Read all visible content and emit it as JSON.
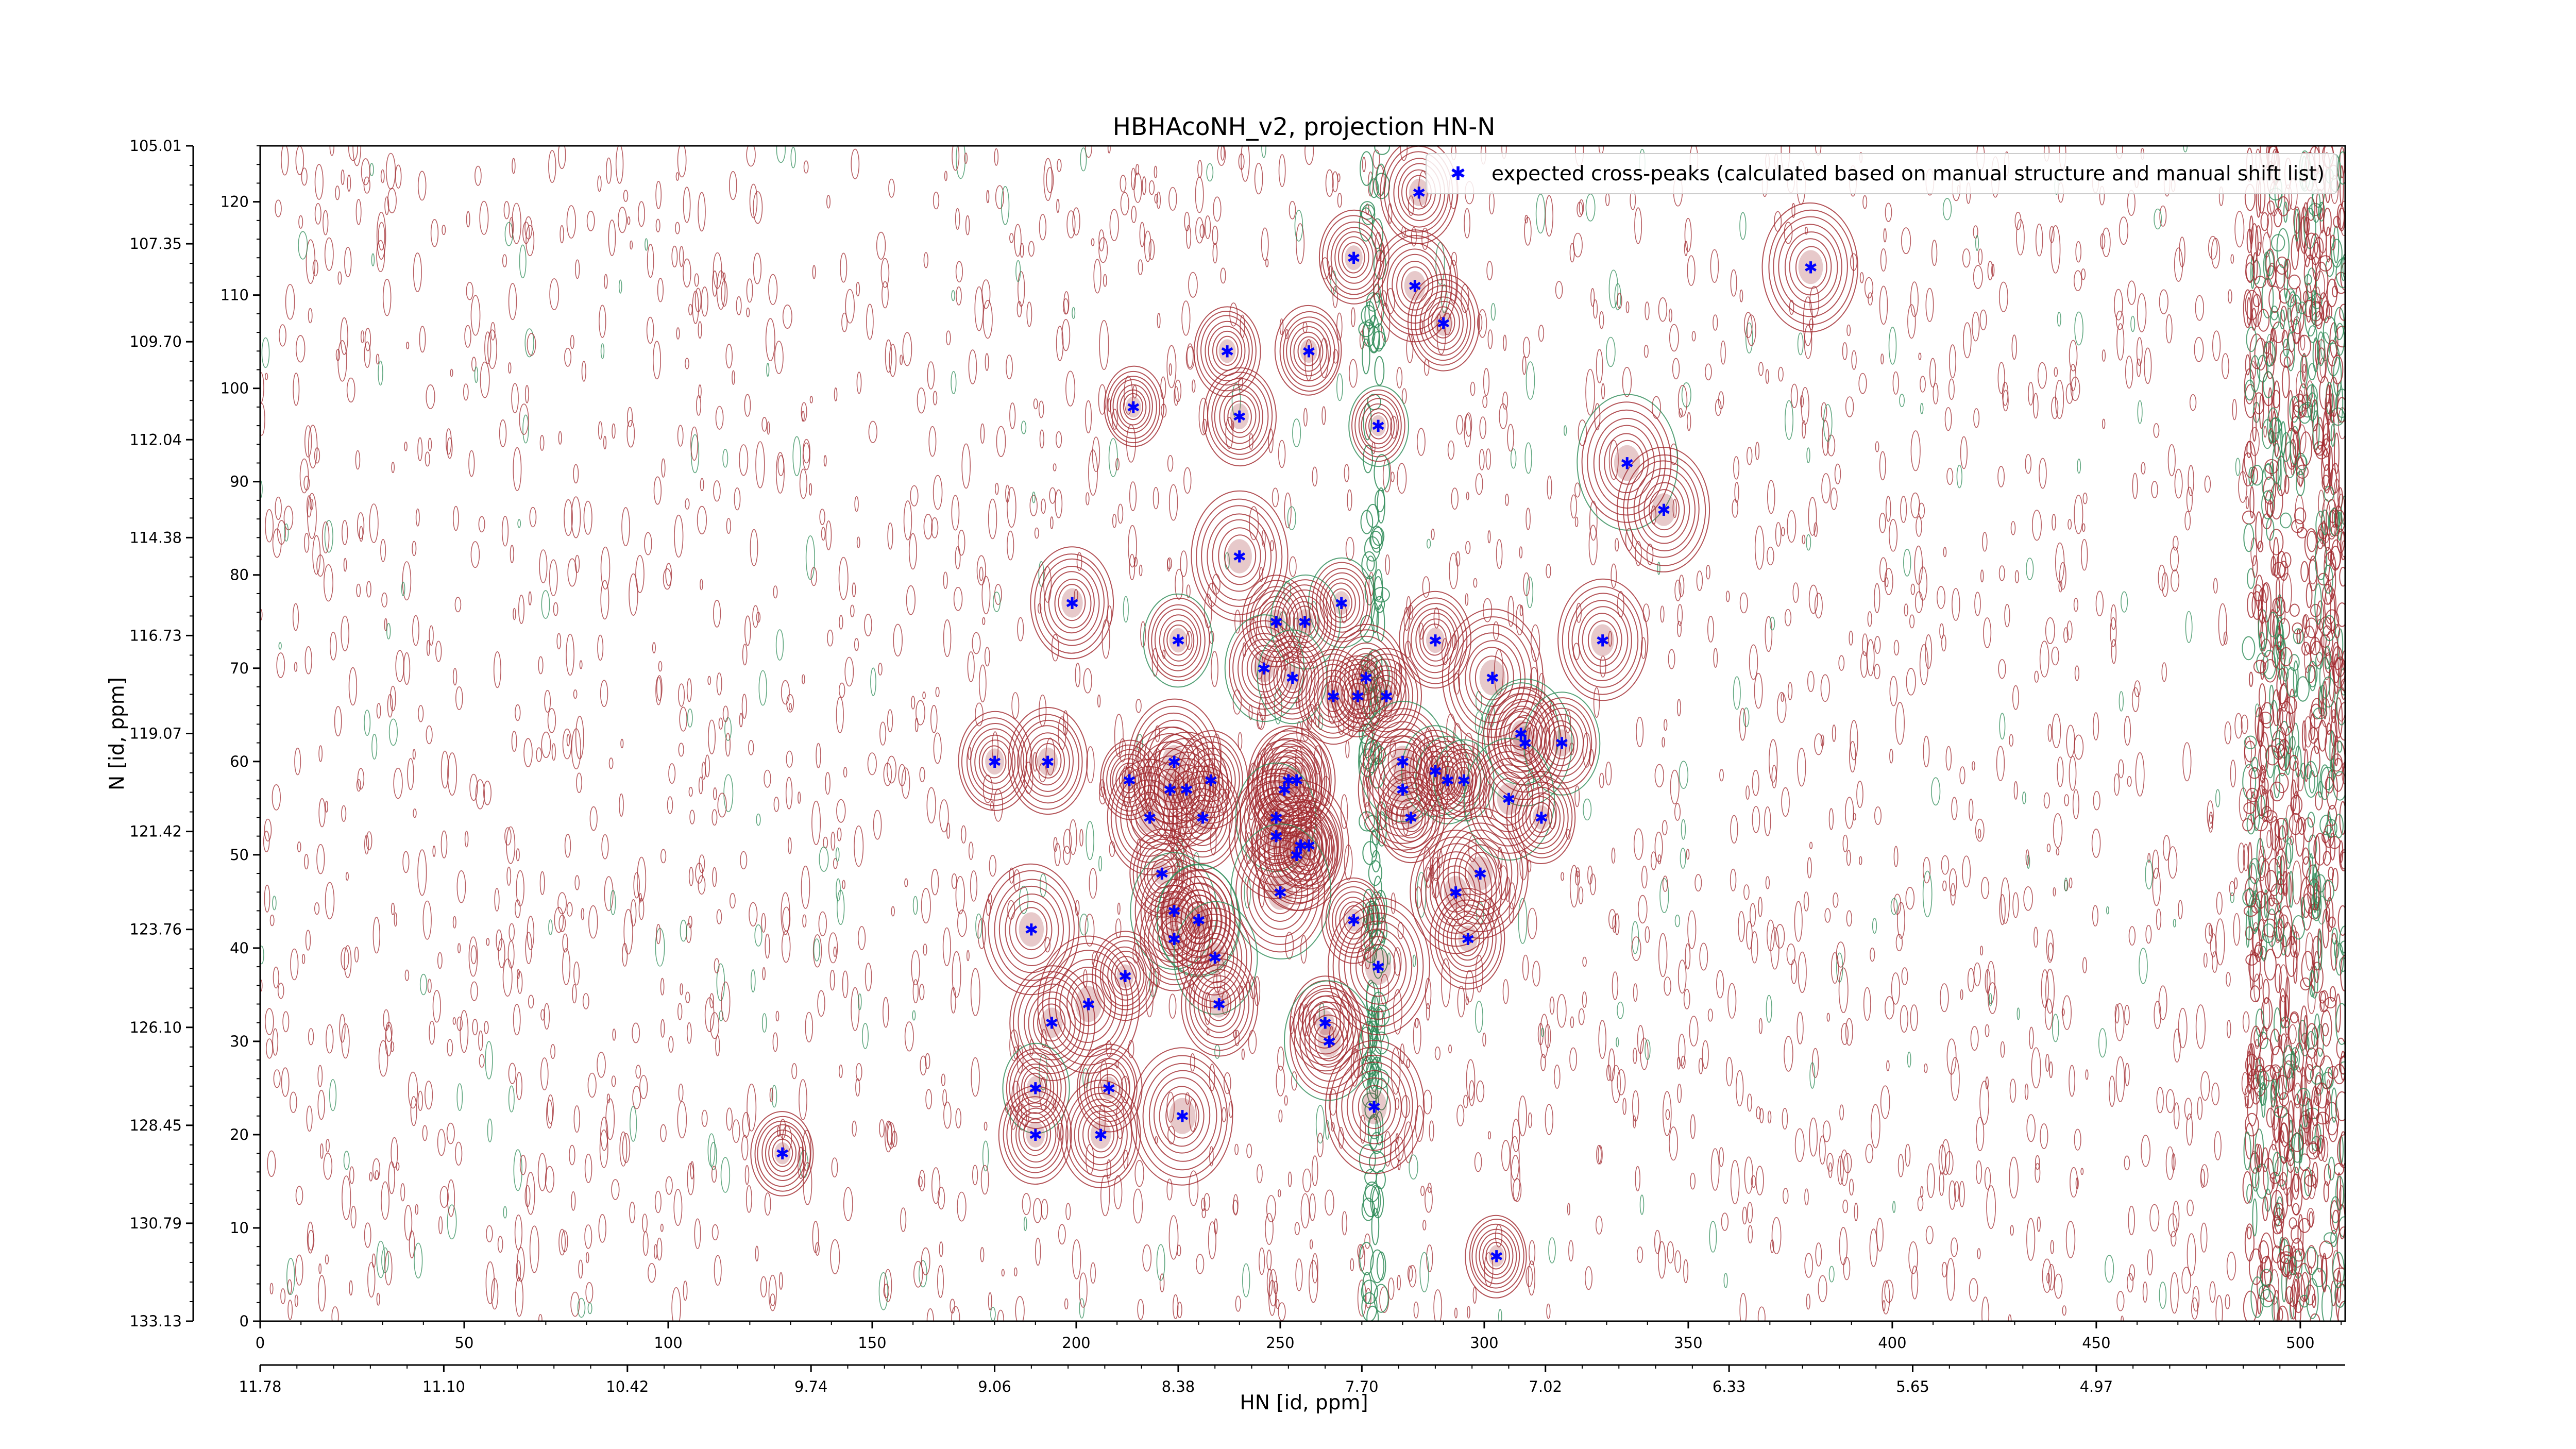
{
  "chart_data": {
    "type": "scatter",
    "title": "HBHAcoNH_v2, projection HN-N",
    "xlabel": "HN [id, ppm]",
    "ylabel": "N [id, ppm]",
    "xlim": [
      0,
      511
    ],
    "ylim": [
      0,
      126
    ],
    "x_ticks": [
      0,
      50,
      100,
      150,
      200,
      250,
      300,
      350,
      400,
      450,
      500
    ],
    "y_ticks": [
      0,
      10,
      20,
      30,
      40,
      50,
      60,
      70,
      80,
      90,
      100,
      110,
      120
    ],
    "x_ppm_ticks": [
      {
        "x": 0,
        "label": "11.78"
      },
      {
        "x": 45,
        "label": "11.10"
      },
      {
        "x": 90,
        "label": "10.42"
      },
      {
        "x": 135,
        "label": "9.74"
      },
      {
        "x": 180,
        "label": "9.06"
      },
      {
        "x": 225,
        "label": "8.38"
      },
      {
        "x": 270,
        "label": "7.70"
      },
      {
        "x": 315,
        "label": "7.02"
      },
      {
        "x": 360,
        "label": "6.33"
      },
      {
        "x": 405,
        "label": "5.65"
      },
      {
        "x": 450,
        "label": "4.97"
      }
    ],
    "y_ppm_ticks": [
      {
        "y": 0,
        "label": "133.13"
      },
      {
        "y": 10.5,
        "label": "130.79"
      },
      {
        "y": 21,
        "label": "128.45"
      },
      {
        "y": 31.5,
        "label": "126.10"
      },
      {
        "y": 42,
        "label": "123.76"
      },
      {
        "y": 52.5,
        "label": "121.42"
      },
      {
        "y": 63,
        "label": "119.07"
      },
      {
        "y": 73.5,
        "label": "116.73"
      },
      {
        "y": 84,
        "label": "114.38"
      },
      {
        "y": 94.5,
        "label": "112.04"
      },
      {
        "y": 105,
        "label": "109.70"
      },
      {
        "y": 115.5,
        "label": "107.35"
      },
      {
        "y": 126,
        "label": "105.01"
      }
    ],
    "legend": {
      "position": "top-right",
      "entries": [
        "expected cross-peaks (calculated based on manual structure and manual shift list)"
      ]
    },
    "colors": {
      "peaks": "#0000ff",
      "positive_contours": "#a0282d",
      "negative_contours": "#2e8b57"
    },
    "series": [
      {
        "name": "expected cross-peaks (calculated based on manual structure and manual shift list)",
        "points": [
          [
            284,
            121
          ],
          [
            268,
            114
          ],
          [
            380,
            113
          ],
          [
            283,
            111
          ],
          [
            290,
            107
          ],
          [
            237,
            104
          ],
          [
            257,
            104
          ],
          [
            214,
            98
          ],
          [
            240,
            97
          ],
          [
            274,
            96
          ],
          [
            335,
            92
          ],
          [
            344,
            87
          ],
          [
            240,
            82
          ],
          [
            199,
            77
          ],
          [
            265,
            77
          ],
          [
            249,
            75
          ],
          [
            256,
            75
          ],
          [
            225,
            73
          ],
          [
            288,
            73
          ],
          [
            329,
            73
          ],
          [
            246,
            70
          ],
          [
            253,
            69
          ],
          [
            271,
            69
          ],
          [
            302,
            69
          ],
          [
            263,
            67
          ],
          [
            269,
            67
          ],
          [
            276,
            67
          ],
          [
            309,
            63
          ],
          [
            310,
            62
          ],
          [
            319,
            62
          ],
          [
            180,
            60
          ],
          [
            193,
            60
          ],
          [
            224,
            60
          ],
          [
            280,
            60
          ],
          [
            288,
            59
          ],
          [
            291,
            58
          ],
          [
            295,
            58
          ],
          [
            213,
            58
          ],
          [
            223,
            57
          ],
          [
            227,
            57
          ],
          [
            233,
            58
          ],
          [
            252,
            58
          ],
          [
            254,
            58
          ],
          [
            251,
            57
          ],
          [
            280,
            57
          ],
          [
            306,
            56
          ],
          [
            218,
            54
          ],
          [
            231,
            54
          ],
          [
            249,
            54
          ],
          [
            282,
            54
          ],
          [
            314,
            54
          ],
          [
            249,
            52
          ],
          [
            255,
            51
          ],
          [
            257,
            51
          ],
          [
            254,
            50
          ],
          [
            221,
            48
          ],
          [
            299,
            48
          ],
          [
            250,
            46
          ],
          [
            293,
            46
          ],
          [
            224,
            44
          ],
          [
            230,
            43
          ],
          [
            230,
            43
          ],
          [
            268,
            43
          ],
          [
            189,
            42
          ],
          [
            296,
            41
          ],
          [
            224,
            41
          ],
          [
            234,
            39
          ],
          [
            274,
            38
          ],
          [
            212,
            37
          ],
          [
            235,
            34
          ],
          [
            203,
            34
          ],
          [
            194,
            32
          ],
          [
            261,
            32
          ],
          [
            262,
            30
          ],
          [
            190,
            25
          ],
          [
            208,
            25
          ],
          [
            273,
            23
          ],
          [
            226,
            22
          ],
          [
            190,
            20
          ],
          [
            206,
            20
          ],
          [
            128,
            18
          ],
          [
            303,
            7
          ]
        ]
      }
    ]
  }
}
